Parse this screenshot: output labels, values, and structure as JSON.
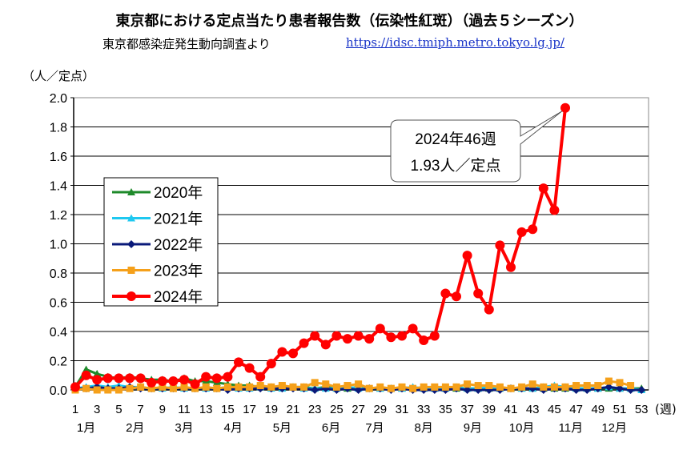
{
  "header": {
    "title": "東京都における定点当たり患者報告数（伝染性紅斑）（過去５シーズン）",
    "subtitle": "東京都感染症発生動向調査より",
    "source_url": "https://idsc.tmiph.metro.tokyo.lg.jp/"
  },
  "chart_data": {
    "type": "line",
    "title": "東京都における定点当たり患者報告数（伝染性紅斑）（過去５シーズン）",
    "ylabel": "（人／定点）",
    "xlabel": "(週)",
    "ylim": [
      0,
      2.0
    ],
    "yticks": [
      "0.0",
      "0.2",
      "0.4",
      "0.6",
      "0.8",
      "1.0",
      "1.2",
      "1.4",
      "1.6",
      "1.8",
      "2.0"
    ],
    "xlim": [
      1,
      53
    ],
    "xticks": [
      "1",
      "3",
      "5",
      "7",
      "9",
      "11",
      "13",
      "15",
      "17",
      "19",
      "21",
      "23",
      "25",
      "27",
      "29",
      "31",
      "33",
      "35",
      "37",
      "39",
      "41",
      "43",
      "45",
      "47",
      "49",
      "51",
      "53"
    ],
    "months": [
      {
        "label": "1月",
        "week": 2
      },
      {
        "label": "2月",
        "week": 6.5
      },
      {
        "label": "3月",
        "week": 11
      },
      {
        "label": "4月",
        "week": 15.5
      },
      {
        "label": "5月",
        "week": 20
      },
      {
        "label": "6月",
        "week": 24.5
      },
      {
        "label": "7月",
        "week": 28.5
      },
      {
        "label": "8月",
        "week": 33
      },
      {
        "label": "9月",
        "week": 37.5
      },
      {
        "label": "10月",
        "week": 42
      },
      {
        "label": "11月",
        "week": 46.5
      },
      {
        "label": "12月",
        "week": 50.5
      }
    ],
    "grid": true,
    "legend_position": "left-middle",
    "series": [
      {
        "name": "2020年",
        "color": "#1e8a2a",
        "marker": "triangle",
        "values": [
          0.02,
          0.14,
          0.11,
          0.09,
          0.08,
          0.09,
          0.08,
          0.07,
          0.07,
          0.06,
          0.08,
          0.06,
          0.06,
          0.05,
          0.04,
          0.03,
          0.03,
          0.02,
          0.02,
          0.02,
          0.02,
          0.02,
          0.01,
          0.02,
          0.01,
          0.01,
          0.02,
          0.01,
          0.01,
          0.01,
          0.01,
          0.01,
          0.01,
          0.01,
          0.01,
          0.01,
          0.01,
          0.01,
          0.01,
          0.01,
          0.01,
          0.01,
          0.01,
          0.01,
          0.01,
          0.01,
          0.01,
          0.01,
          0.01,
          0.01,
          0.01,
          0.01,
          0.01
        ]
      },
      {
        "name": "2021年",
        "color": "#1ec8f0",
        "marker": "triangle",
        "values": [
          0.01,
          0.02,
          0.03,
          0.02,
          0.03,
          0.02,
          0.02,
          0.01,
          0.01,
          0.02,
          0.01,
          0.01,
          0.01,
          0.01,
          0.02,
          0.01,
          0.01,
          0.02,
          0.01,
          0.01,
          0.02,
          0.01,
          0.01,
          0.01,
          0.01,
          0.02,
          0.01,
          0.01,
          0.01,
          0.01,
          0.01,
          0.02,
          0.01,
          0.01,
          0.01,
          0.02,
          0.01,
          0.01,
          0.02,
          0.01,
          0.01,
          0.01,
          0.01,
          0.02,
          0.03,
          0.02,
          0.01,
          0.01,
          0.01,
          0.02,
          0.01,
          0.01,
          0.0
        ]
      },
      {
        "name": "2022年",
        "color": "#0a1a7a",
        "marker": "diamond",
        "values": [
          0.01,
          0.01,
          0.02,
          0.01,
          0.01,
          0.02,
          0.01,
          0.01,
          0.01,
          0.01,
          0.01,
          0.01,
          0.01,
          0.01,
          0.0,
          0.01,
          0.01,
          0.01,
          0.01,
          0.01,
          0.01,
          0.01,
          0.0,
          0.01,
          0.0,
          0.01,
          0.0,
          0.01,
          0.01,
          0.0,
          0.01,
          0.0,
          0.0,
          0.0,
          0.0,
          0.01,
          0.0,
          0.0,
          0.0,
          0.0,
          0.01,
          0.01,
          0.01,
          0.0,
          0.01,
          0.01,
          0.0,
          0.0,
          0.01,
          0.02,
          0.01,
          0.0,
          0.0
        ]
      },
      {
        "name": "2023年",
        "color": "#f5a01a",
        "marker": "square",
        "values": [
          0.0,
          0.01,
          0.0,
          0.0,
          0.0,
          0.01,
          0.02,
          0.01,
          0.02,
          0.01,
          0.02,
          0.01,
          0.02,
          0.01,
          0.02,
          0.02,
          0.02,
          0.03,
          0.02,
          0.03,
          0.02,
          0.02,
          0.05,
          0.04,
          0.02,
          0.03,
          0.04,
          0.01,
          0.02,
          0.01,
          0.02,
          0.01,
          0.02,
          0.02,
          0.02,
          0.02,
          0.04,
          0.03,
          0.03,
          0.02,
          0.01,
          0.02,
          0.04,
          0.02,
          0.02,
          0.02,
          0.03,
          0.03,
          0.03,
          0.06,
          0.05,
          0.03,
          null
        ]
      },
      {
        "name": "2024年",
        "color": "#ff0000",
        "marker": "circle",
        "values": [
          0.02,
          0.1,
          0.07,
          0.08,
          0.08,
          0.08,
          0.08,
          0.05,
          0.06,
          0.06,
          0.07,
          0.04,
          0.09,
          0.08,
          0.09,
          0.19,
          0.15,
          0.09,
          0.18,
          0.26,
          0.25,
          0.32,
          0.37,
          0.31,
          0.37,
          0.35,
          0.37,
          0.35,
          0.42,
          0.36,
          0.37,
          0.42,
          0.34,
          0.37,
          0.66,
          0.64,
          0.92,
          0.66,
          0.55,
          0.99,
          0.84,
          1.08,
          1.1,
          1.38,
          1.23,
          1.93
        ]
      }
    ],
    "annotation": {
      "line1": "2024年46週",
      "line2": "1.93人／定点",
      "week": 46,
      "value": 1.93
    }
  }
}
